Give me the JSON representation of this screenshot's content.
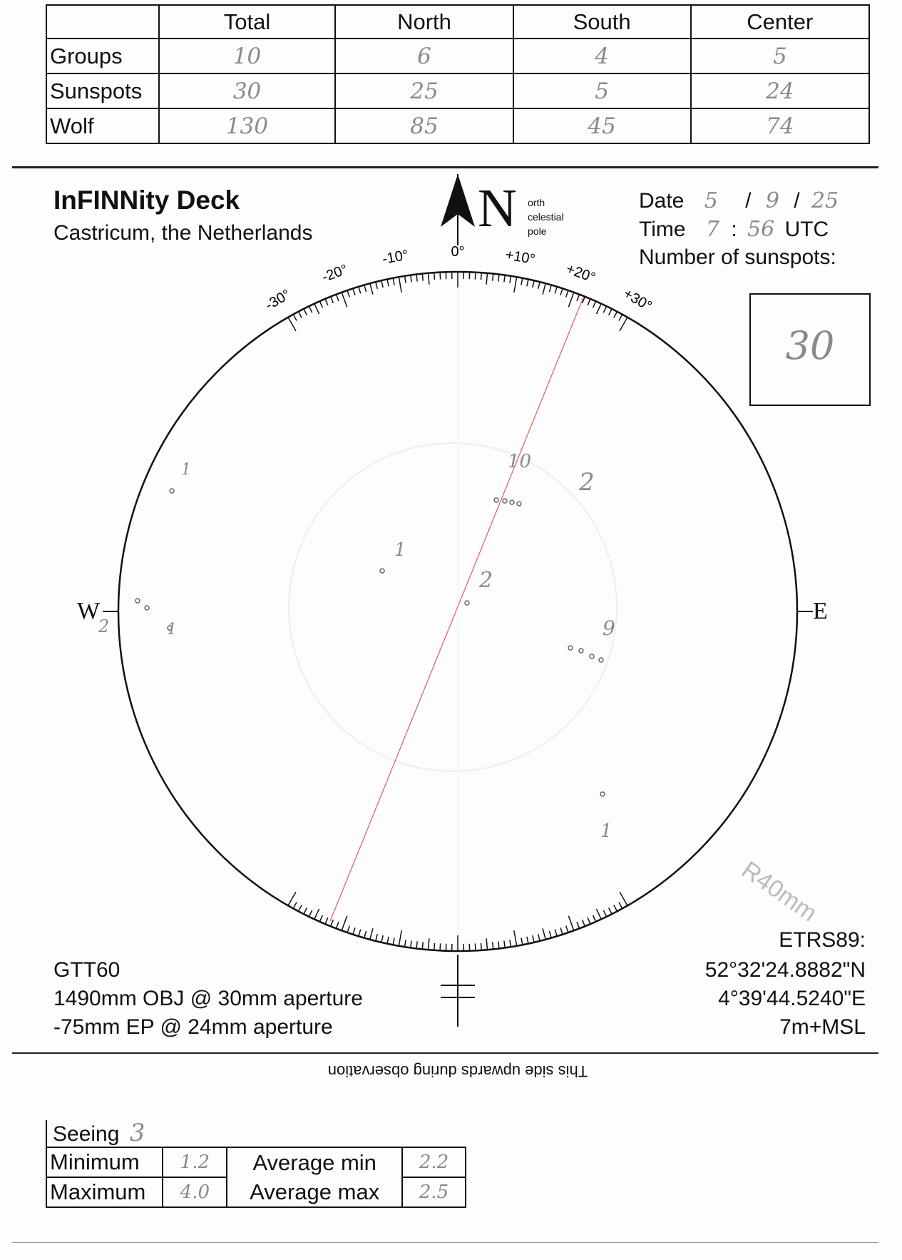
{
  "counts_table": {
    "headers": [
      "",
      "Total",
      "North",
      "South",
      "Center"
    ],
    "rows": [
      {
        "label": "Groups",
        "values": [
          "10",
          "6",
          "4",
          "5"
        ]
      },
      {
        "label": "Sunspots",
        "values": [
          "30",
          "25",
          "5",
          "24"
        ]
      },
      {
        "label": "Wolf",
        "values": [
          "130",
          "85",
          "45",
          "74"
        ]
      }
    ]
  },
  "header": {
    "title": "InFINNity Deck",
    "location": "Castricum, the Netherlands",
    "pole_label_letter": "N",
    "pole_label_lines": [
      "orth",
      "celestial",
      "pole"
    ]
  },
  "observation": {
    "date_label": "Date",
    "date_day": "5",
    "date_month": "9",
    "date_year": "25",
    "date_sep": "/",
    "time_label": "Time",
    "time_hour": "7",
    "time_min": "56",
    "time_sep": ":",
    "time_unit": "UTC",
    "sunspots_label": "Number of sunspots:",
    "sunspots_value": "30"
  },
  "disk": {
    "west_label": "W",
    "east_label": "E",
    "angle_labels": [
      "-30°",
      "-20°",
      "-10°",
      "0°",
      "+10°",
      "+20°",
      "+30°"
    ],
    "radius_label": "R40mm",
    "axis_line_color": "#e85a5a",
    "group_annotations": [
      "10",
      "2",
      "1",
      "2",
      "9",
      "1",
      "2",
      "1",
      "1"
    ]
  },
  "instrument": {
    "name": "GTT60",
    "objective": "1490mm OBJ @ 30mm aperture",
    "eyepiece": "-75mm EP @ 24mm aperture"
  },
  "coordinates": {
    "datum": "ETRS89:",
    "lat": "52°32'24.8882\"N",
    "lon": "4°39'44.5240\"E",
    "elevation": "7m+MSL"
  },
  "orientation_note": "This side upwards during observation",
  "seeing": {
    "label": "Seeing",
    "value": "3",
    "minimum_label": "Minimum",
    "minimum_value": "1.2",
    "maximum_label": "Maximum",
    "maximum_value": "4.0",
    "avg_min_label": "Average min",
    "avg_min_value": "2.2",
    "avg_max_label": "Average max",
    "avg_max_value": "2.5"
  }
}
